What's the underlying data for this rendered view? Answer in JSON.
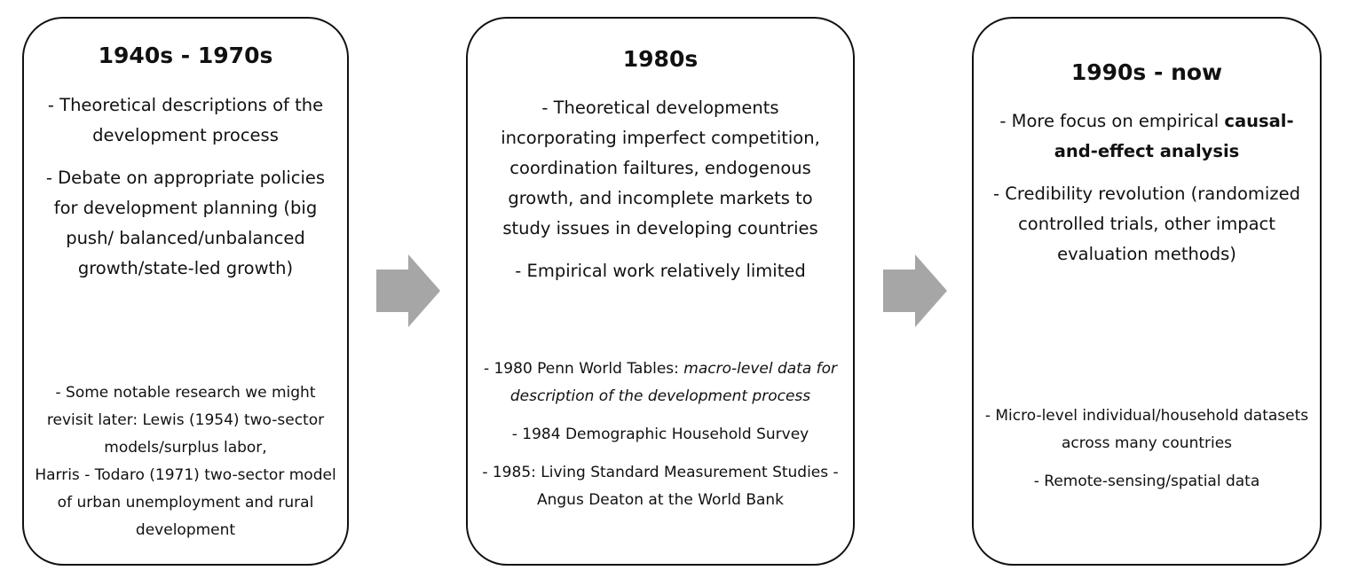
{
  "colors": {
    "border": "#111111",
    "arrow": "#a6a6a6",
    "text": "#111111"
  },
  "stages": [
    {
      "title": "1940s - 1970s",
      "upper": [
        "- Theoretical descriptions of the development process",
        "- Debate on appropriate policies for development planning (big push/ balanced/unbalanced growth/state-led growth)"
      ],
      "lower": [
        "- Some notable research we might revisit later: Lewis (1954) two-sector models/surplus labor,",
        "Harris - Todaro (1971) two-sector model of urban unemployment and rural development"
      ]
    },
    {
      "title": "1980s",
      "upper": [
        "- Theoretical developments incorporating imperfect competition, coordination failtures, endogenous growth, and incomplete markets to study issues in developing countries",
        "- Empirical work relatively limited"
      ],
      "lower": [
        {
          "lead": "- 1980 Penn World Tables: ",
          "italic": "macro-level data for description of the development process"
        },
        "- 1984 Demographic Household Survey",
        "- 1985: Living Standard Measurement Studies - Angus Deaton at the World Bank"
      ]
    },
    {
      "title": "1990s - now",
      "upper": [
        {
          "lead": "- More focus on empirical ",
          "bold": "causal-and-effect analysis"
        },
        "- Credibility revolution (randomized controlled trials, other impact evaluation methods)"
      ],
      "lower": [
        "- Micro-level individual/household datasets across many countries",
        "- Remote-sensing/spatial data"
      ]
    }
  ],
  "arrows": [
    {
      "icon": "right-arrow-icon"
    },
    {
      "icon": "right-arrow-icon"
    }
  ]
}
